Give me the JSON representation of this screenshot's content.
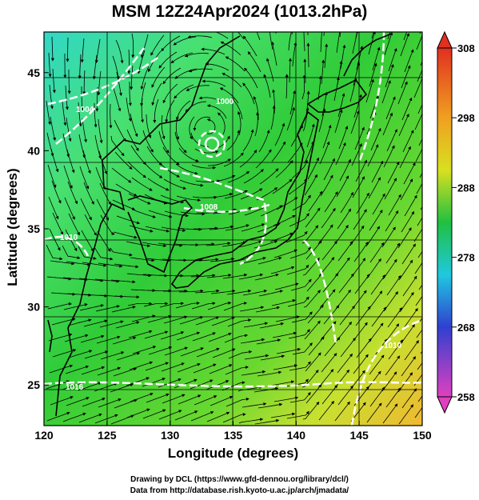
{
  "title": "MSM 12Z24Apr2024 (1013.2hPa)",
  "xlabel": "Longitude (degrees)",
  "ylabel": "Latitude  (degrees)",
  "footer": {
    "line1": "Drawing by DCL (https://www.gfd-dennou.org/library/dcl/)",
    "line2": "Data from http://database.rish.kyoto-u.ac.jp/arch/jmadata/"
  },
  "map": {
    "lon_range": [
      120,
      150
    ],
    "lat_range": [
      22.4,
      47.6
    ],
    "lon_ticks": [
      "120",
      "125",
      "130",
      "135",
      "140",
      "145",
      "150"
    ],
    "lat_ticks": [
      "25",
      "30",
      "35",
      "40",
      "45"
    ],
    "grid_lines": true,
    "contour_labels": [
      "1016",
      "1008",
      "1004",
      "1000",
      "1010",
      "1010"
    ],
    "low_center_lonlat": [
      133.0,
      41.4
    ]
  },
  "colorbar": {
    "ticks": [
      "308",
      "298",
      "288",
      "278",
      "268",
      "258"
    ],
    "range": [
      258,
      308
    ],
    "colors": [
      "#e040c0",
      "#3040d0",
      "#20c8e0",
      "#20c040",
      "#d8e020",
      "#f0a020",
      "#e03020"
    ]
  }
}
